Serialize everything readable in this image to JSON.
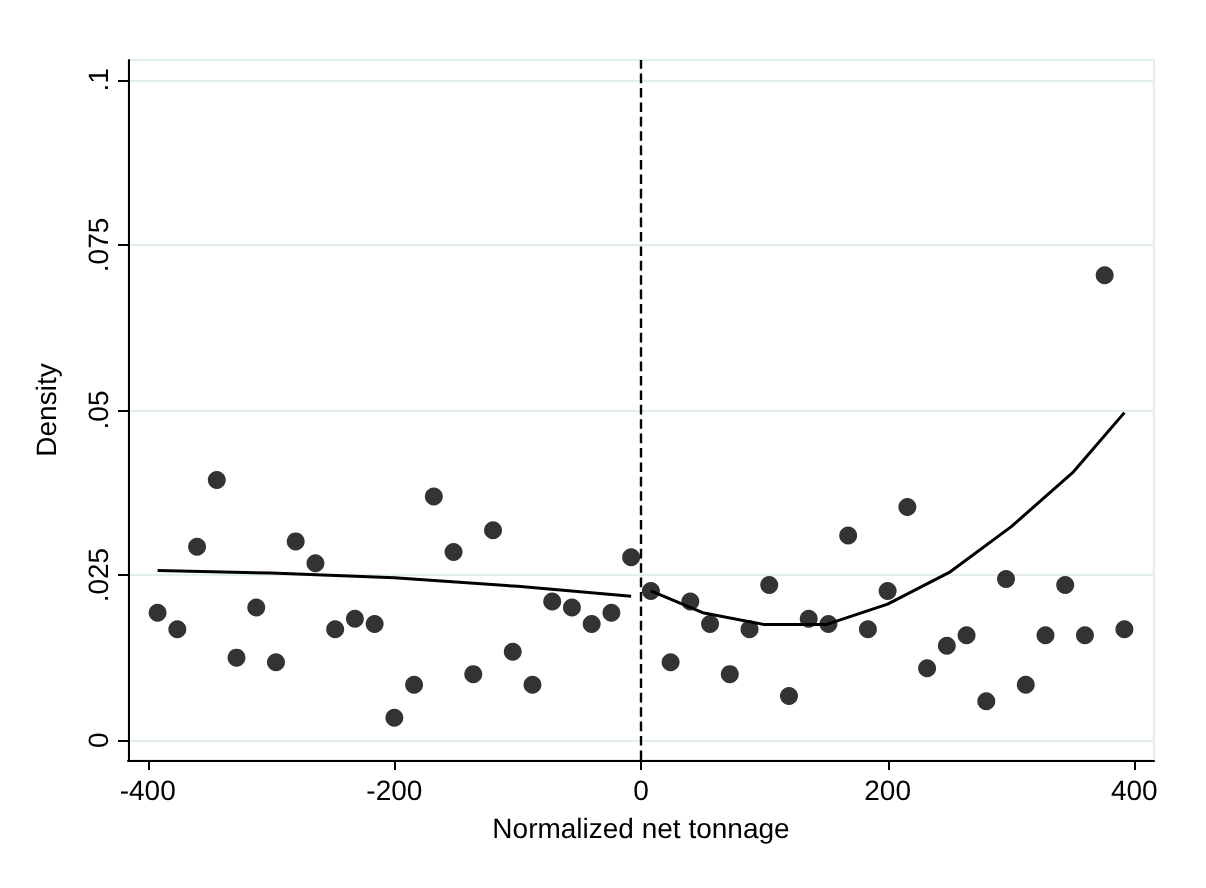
{
  "chart_data": {
    "type": "scatter",
    "xlabel": "Normalized net tonnage",
    "ylabel": "Density",
    "xlim": [
      -416,
      416
    ],
    "ylim": [
      -0.003,
      0.103
    ],
    "xticks": [
      -400,
      -200,
      0,
      200,
      400
    ],
    "yticks": [
      0,
      {
        "value": 0.025,
        "label": ".025"
      },
      {
        "value": 0.05,
        "label": ".05"
      },
      {
        "value": 0.075,
        "label": ".075"
      },
      {
        "value": 0.1,
        "label": ".1"
      }
    ],
    "grid": "y",
    "ref_lines": [
      {
        "axis": "x",
        "value": 0,
        "line_style": "dashed",
        "color": "#000000"
      }
    ],
    "series": [
      {
        "color": "#000000",
        "marker": "circle",
        "x": [
          -392,
          -376,
          -360,
          -344,
          -328,
          -312,
          -296,
          -280,
          -264,
          -248,
          -232,
          -216,
          -200,
          -184,
          -168,
          -152,
          -136,
          -120,
          -104,
          -88,
          -72,
          -56,
          -40,
          -24,
          -8,
          8,
          24,
          40,
          56,
          72,
          88,
          104,
          120,
          136,
          152,
          168,
          184,
          200,
          216,
          232,
          248,
          264,
          280,
          296,
          312,
          328,
          344,
          360,
          376,
          392
        ],
        "values": [
          0.0193,
          0.0168,
          0.0293,
          0.0394,
          0.0125,
          0.0201,
          0.0118,
          0.0301,
          0.0268,
          0.0168,
          0.0184,
          0.0176,
          0.0034,
          0.0084,
          0.0369,
          0.0285,
          0.01,
          0.0318,
          0.0134,
          0.0084,
          0.021,
          0.0201,
          0.0176,
          0.0193,
          0.0277,
          0.0226,
          0.0118,
          0.021,
          0.0176,
          0.01,
          0.0168,
          0.0235,
          0.0067,
          0.0184,
          0.0176,
          0.031,
          0.0168,
          0.0226,
          0.0353,
          0.0109,
          0.0143,
          0.0159,
          0.0059,
          0.0244,
          0.0084,
          0.0159,
          0.0235,
          0.0159,
          0.0704,
          0.0168
        ]
      },
      {
        "type": "line",
        "color": "#000000",
        "marker": "none",
        "line_style": "solid",
        "x": [
          -392,
          -300,
          -200,
          -100,
          -8
        ],
        "values": [
          0.0257,
          0.0253,
          0.0246,
          0.0233,
          0.0218
        ]
      },
      {
        "type": "line",
        "color": "#000000",
        "marker": "none",
        "line_style": "solid",
        "x": [
          8,
          50,
          100,
          150,
          200,
          250,
          300,
          350,
          392
        ],
        "values": [
          0.0226,
          0.0193,
          0.0175,
          0.0175,
          0.0206,
          0.0254,
          0.0323,
          0.0405,
          0.0496
        ]
      }
    ]
  }
}
